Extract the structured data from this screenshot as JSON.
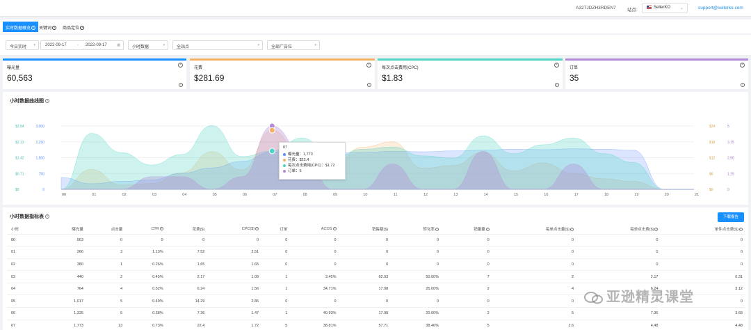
{
  "topbar": {
    "account_id": "A32TJDZH3RDEN7",
    "site_label": "站点:",
    "site_value": "SellerKO",
    "email": "support@sellerko.com"
  },
  "tabs": [
    {
      "label": "实时数据概览",
      "active": true
    },
    {
      "label": "关键词",
      "active": false
    },
    {
      "label": "商品定位",
      "active": false
    }
  ],
  "filters": {
    "date_range_preset": "今日实时",
    "start_date": "2022-09-17",
    "end_date": "2022-09-17",
    "granularity": "小时数据",
    "site": "全站点",
    "campaign": "全部广告位"
  },
  "kpis": [
    {
      "label": "曝光量",
      "value": "60,563",
      "color": "#1890ff"
    },
    {
      "label": "花费",
      "value": "$281.69",
      "color": "#f4b266"
    },
    {
      "label": "每次点击费用(CPC)",
      "value": "$1.83",
      "color": "#4fd3c4"
    },
    {
      "label": "订单",
      "value": "35",
      "color": "#b28ad6"
    }
  ],
  "chart_title": "小时数据曲线图",
  "chart_data": {
    "type": "area",
    "x": [
      "00",
      "01",
      "02",
      "03",
      "04",
      "05",
      "06",
      "07",
      "08",
      "09",
      "10",
      "11",
      "12",
      "13",
      "14",
      "15",
      "16",
      "17",
      "18",
      "19",
      "20",
      "21"
    ],
    "left_axis_cpc": [
      "$0",
      "$0.71",
      "$1.42",
      "$2.13",
      "$2.84"
    ],
    "left_axis_impr": [
      "0",
      "750",
      "1,500",
      "2,250",
      "3,000"
    ],
    "right_axis_spend": [
      "$0",
      "$6",
      "$12",
      "$18",
      "$24"
    ],
    "right_axis_orders": [
      "0",
      "1.25",
      "2.50",
      "3.75",
      "5"
    ],
    "series": [
      {
        "name": "曝光量",
        "color": "#5b8ff9",
        "values": [
          563,
          266,
          380,
          440,
          764,
          1017,
          1325,
          1773,
          1650,
          1700,
          1750,
          1800,
          1780,
          1820,
          1850,
          1900,
          1880,
          1920,
          1900,
          1850,
          0,
          0
        ]
      },
      {
        "name": "花费",
        "color": "#f4b266",
        "values": [
          0,
          7.52,
          1.65,
          2.17,
          6.24,
          14.29,
          7.36,
          22.4,
          12,
          9,
          16,
          18,
          8,
          9,
          14,
          7,
          10,
          6,
          4,
          3,
          0,
          0
        ]
      },
      {
        "name": "每次点击费用(CPC)",
        "color": "#4fd3c4",
        "values": [
          0,
          2.51,
          1.65,
          1.09,
          1.56,
          2.86,
          1.47,
          1.72,
          2.3,
          1.4,
          1.8,
          1.9,
          1.5,
          1.4,
          2.4,
          1.6,
          2.0,
          2.3,
          1.6,
          1.2,
          0,
          0
        ]
      },
      {
        "name": "订单",
        "color": "#b28ad6",
        "values": [
          0,
          0,
          0,
          1,
          1,
          0,
          1,
          5,
          3,
          0,
          0,
          2,
          0,
          0,
          3,
          0,
          0,
          2,
          0,
          0,
          0,
          0
        ]
      }
    ],
    "tooltip": {
      "hour": "07",
      "rows": [
        {
          "label": "曝光量：1,773",
          "color": "#5b8ff9"
        },
        {
          "label": "花费：$22.4",
          "color": "#f4b266"
        },
        {
          "label": "每次点击费用(CPC)：$1.72",
          "color": "#4fd3c4"
        },
        {
          "label": "订单：5",
          "color": "#b28ad6"
        }
      ]
    }
  },
  "table_title": "小时数据指标表",
  "download_label": "下载报告",
  "table": {
    "headers": [
      "小时",
      "曝光量",
      "点击量",
      "CTR",
      "花费($)",
      "CPC($)",
      "订单",
      "ACOS",
      "销售额($)",
      "转化率",
      "销量量",
      "每单点击量($)",
      "每单点击费($)",
      "单件点击费($)"
    ],
    "header_has_info": [
      false,
      false,
      false,
      true,
      false,
      true,
      false,
      true,
      false,
      true,
      true,
      true,
      true,
      true
    ],
    "rows": [
      [
        "00",
        "563",
        "0",
        "0",
        "0",
        "0",
        "0",
        "0",
        "0",
        "0",
        "0",
        "0",
        "0",
        "0"
      ],
      [
        "01",
        "266",
        "3",
        "1.13%",
        "7.52",
        "2.51",
        "0",
        "0",
        "0",
        "0",
        "0",
        "0",
        "0",
        "0"
      ],
      [
        "02",
        "380",
        "1",
        "0.26%",
        "1.65",
        "1.65",
        "0",
        "0",
        "0",
        "0",
        "0",
        "0",
        "0",
        "0"
      ],
      [
        "03",
        "440",
        "2",
        "0.45%",
        "2.17",
        "1.09",
        "1",
        "3.45%",
        "62.93",
        "50.00%",
        "7",
        "2",
        "2.17",
        "0.31"
      ],
      [
        "04",
        "764",
        "4",
        "0.52%",
        "6.24",
        "1.56",
        "1",
        "34.71%",
        "17.98",
        "25.00%",
        "2",
        "4",
        "6.24",
        "3.12"
      ],
      [
        "05",
        "1,017",
        "5",
        "0.49%",
        "14.29",
        "2.86",
        "0",
        "0",
        "0",
        "0",
        "0",
        "0",
        "0",
        "0"
      ],
      [
        "06",
        "1,325",
        "5",
        "0.38%",
        "7.36",
        "1.47",
        "1",
        "40.93%",
        "17.98",
        "20.00%",
        "2",
        "5",
        "7.36",
        "3.68"
      ],
      [
        "07",
        "1,773",
        "13",
        "0.73%",
        "22.4",
        "1.72",
        "5",
        "38.81%",
        "57.71",
        "38.46%",
        "5",
        "2.6",
        "4.48",
        "4.48"
      ]
    ]
  },
  "watermark": "亚逊精灵课堂"
}
